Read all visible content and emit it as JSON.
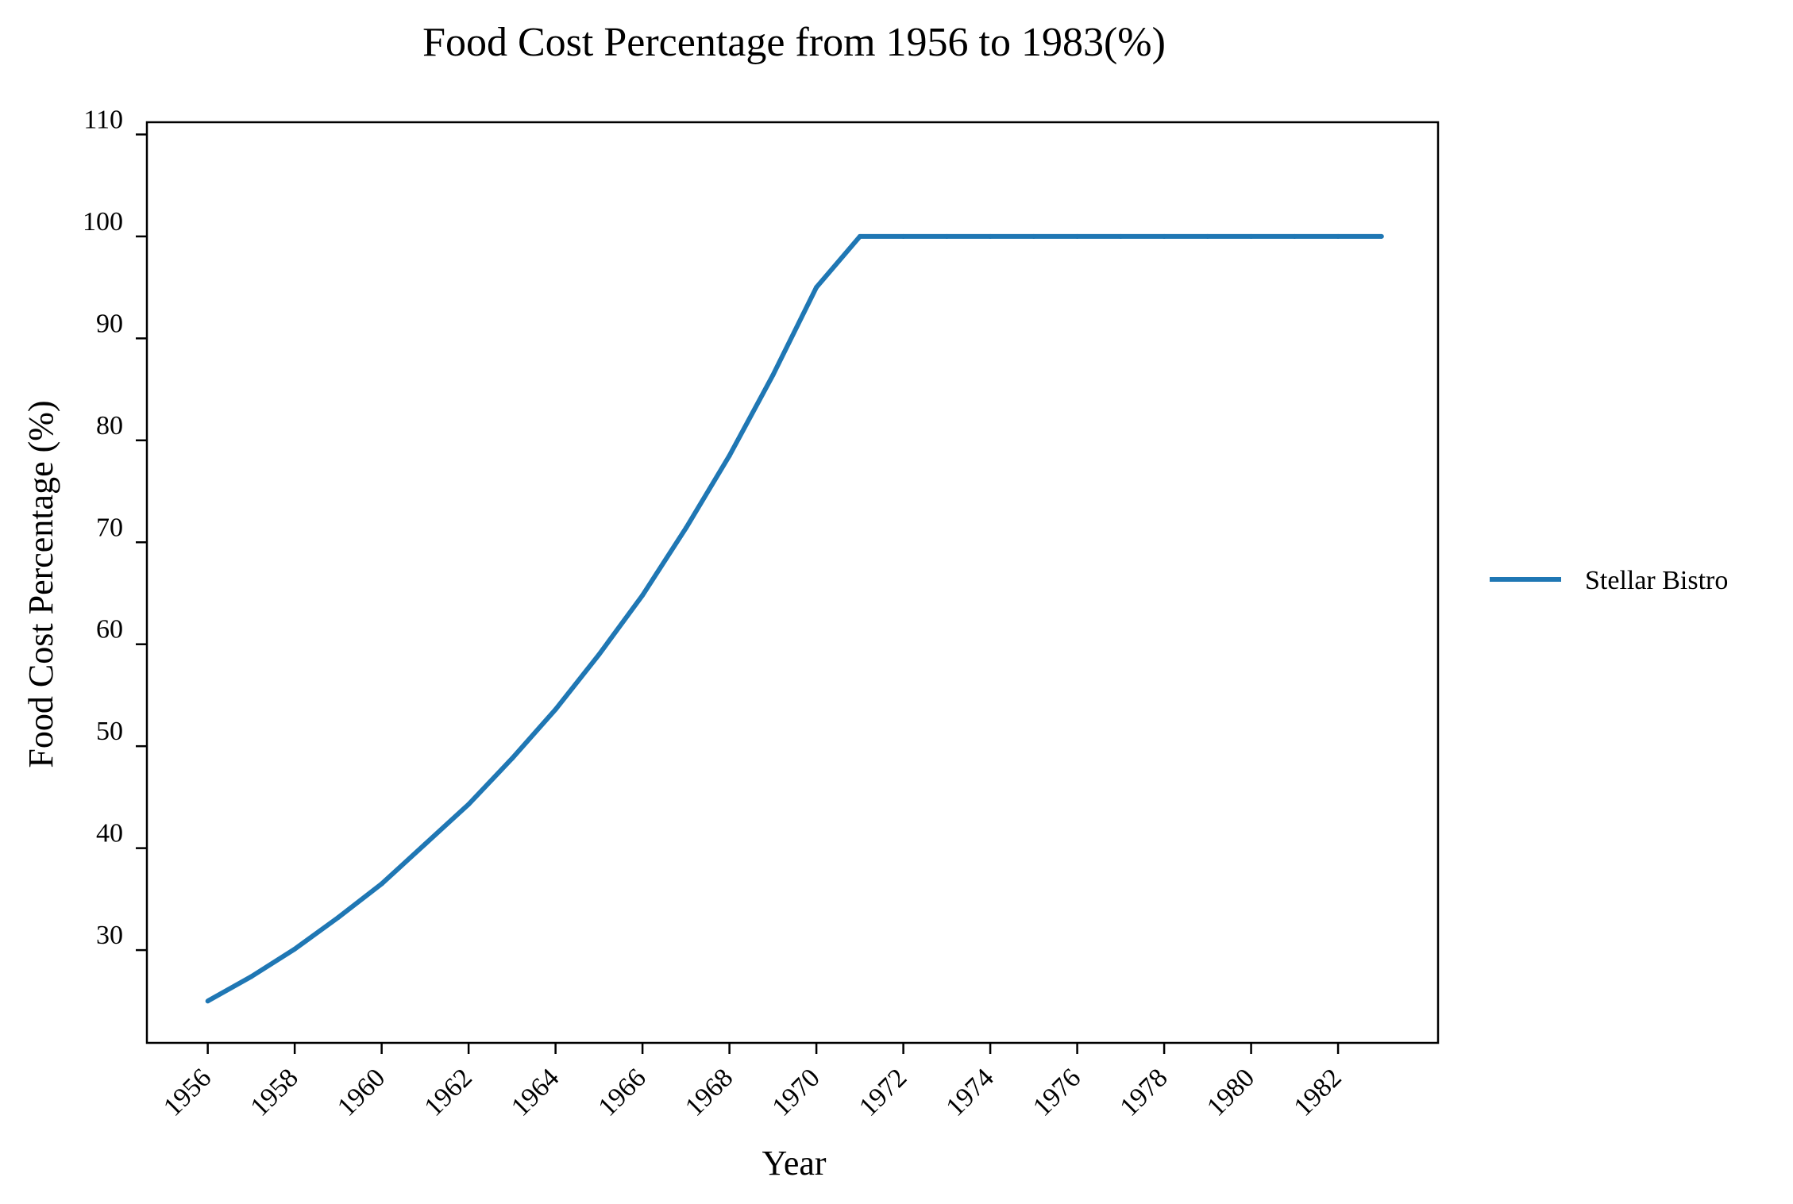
{
  "chart_data": {
    "type": "line",
    "title": "Food Cost Percentage from 1956 to 1983(%)",
    "xlabel": "Year",
    "ylabel": "Food Cost Percentage (%)",
    "x": [
      1956,
      1957,
      1958,
      1959,
      1960,
      1961,
      1962,
      1963,
      1964,
      1965,
      1966,
      1967,
      1968,
      1969,
      1970,
      1971,
      1972,
      1973,
      1974,
      1975,
      1976,
      1977,
      1978,
      1979,
      1980,
      1981,
      1982,
      1983
    ],
    "series": [
      {
        "name": "Stellar Bistro",
        "color": "#1f77b4",
        "values": [
          25.0,
          27.4,
          30.1,
          33.2,
          36.5,
          40.4,
          44.3,
          48.8,
          53.6,
          59.0,
          64.8,
          71.4,
          78.5,
          86.4,
          95.0,
          100.0,
          100.0,
          100.0,
          100.0,
          100.0,
          100.0,
          100.0,
          100.0,
          100.0,
          100.0,
          100.0,
          100.0,
          100.0
        ]
      }
    ],
    "xticks": [
      "1956",
      "1958",
      "1960",
      "1962",
      "1964",
      "1966",
      "1968",
      "1970",
      "1972",
      "1974",
      "1976",
      "1978",
      "1980",
      "1982"
    ],
    "yticks": [
      "30",
      "40",
      "50",
      "60",
      "70",
      "80",
      "90",
      "100",
      "110"
    ],
    "xlim": [
      1954.6,
      1984.3
    ],
    "ylim": [
      20.9,
      111.2
    ],
    "grid": false,
    "legend_position": "right"
  }
}
